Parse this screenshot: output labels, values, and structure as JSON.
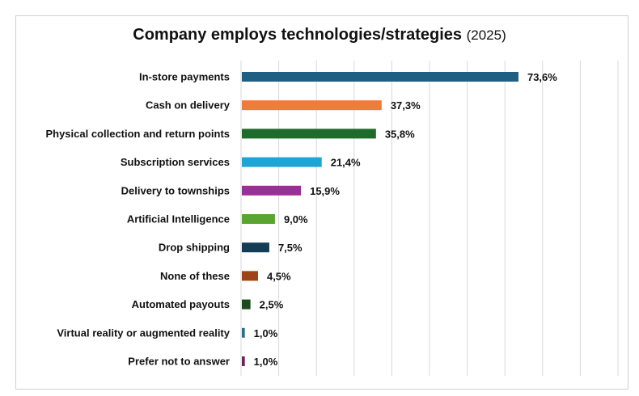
{
  "chart_data": {
    "type": "bar",
    "orientation": "horizontal",
    "title": "Company employs technologies/strategies",
    "subtitle": "(2025)",
    "xlabel": "",
    "ylabel": "",
    "xlim": [
      0,
      100
    ],
    "grid": true,
    "gridline_step": 10,
    "legend": "none",
    "categories": [
      "In-store payments",
      "Cash on delivery",
      "Physical collection and return points",
      "Subscription services",
      "Delivery to townships",
      "Artificial Intelligence",
      "Drop shipping",
      "None of these",
      "Automated payouts",
      "Virtual reality or augmented reality",
      "Prefer not to answer"
    ],
    "values": [
      73.6,
      37.3,
      35.8,
      21.4,
      15.9,
      9.0,
      7.5,
      4.5,
      2.5,
      1.0,
      1.0
    ],
    "data_labels": [
      "73,6%",
      "37,3%",
      "35,8%",
      "21,4%",
      "15,9%",
      "9,0%",
      "7,5%",
      "4,5%",
      "2,5%",
      "1,0%",
      "1,0%"
    ],
    "colors": [
      "#1f5f82",
      "#ee7d37",
      "#1e6b2b",
      "#1ea5d6",
      "#9b2f98",
      "#5aa532",
      "#143d55",
      "#9e4416",
      "#1d4a1c",
      "#2a6e8e",
      "#6a2455"
    ]
  }
}
